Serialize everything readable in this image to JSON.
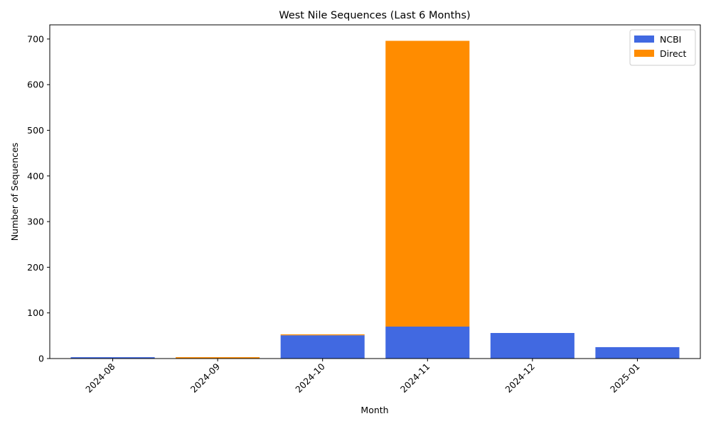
{
  "chart_data": {
    "type": "bar",
    "stacked": true,
    "title": "West Nile Sequences (Last 6 Months)",
    "xlabel": "Month",
    "ylabel": "Number of Sequences",
    "categories": [
      "2024-08",
      "2024-09",
      "2024-10",
      "2024-11",
      "2024-12",
      "2025-01"
    ],
    "series": [
      {
        "name": "NCBI",
        "color": "#4169e1",
        "values": [
          3,
          0,
          51,
          70,
          56,
          25
        ]
      },
      {
        "name": "Direct",
        "color": "#ff8c00",
        "values": [
          0,
          3,
          2,
          626,
          0,
          0
        ]
      }
    ],
    "ylim": [
      0,
      731
    ],
    "yticks": [
      0,
      100,
      200,
      300,
      400,
      500,
      600,
      700
    ],
    "legend": "top-right",
    "grid": false
  }
}
